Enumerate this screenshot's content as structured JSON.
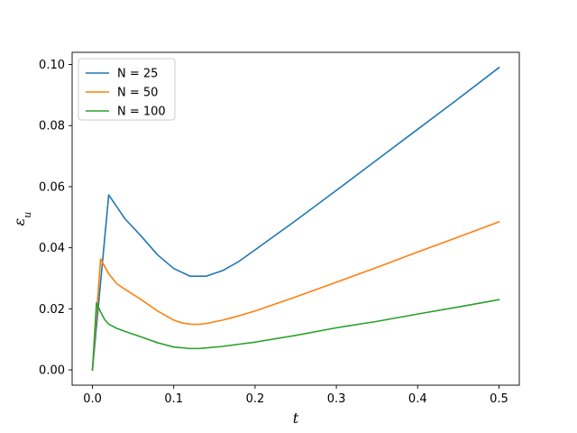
{
  "chart_data": {
    "type": "line",
    "title": "",
    "xlabel": "t",
    "ylabel": "ε_u",
    "xlim": [
      -0.025,
      0.525
    ],
    "ylim": [
      -0.005,
      0.104
    ],
    "xticks": [
      0.0,
      0.1,
      0.2,
      0.3,
      0.4,
      0.5
    ],
    "xtick_labels": [
      "0.0",
      "0.1",
      "0.2",
      "0.3",
      "0.4",
      "0.5"
    ],
    "yticks": [
      0.0,
      0.02,
      0.04,
      0.06,
      0.08,
      0.1
    ],
    "ytick_labels": [
      "0.00",
      "0.02",
      "0.04",
      "0.06",
      "0.08",
      "0.10"
    ],
    "grid": false,
    "legend": "top-left",
    "series": [
      {
        "name": "N = 25",
        "color": "#1f77b4",
        "x": [
          0,
          0.02,
          0.04,
          0.06,
          0.08,
          0.1,
          0.12,
          0.14,
          0.16,
          0.18,
          0.2,
          0.25,
          0.3,
          0.35,
          0.4,
          0.45,
          0.5
        ],
        "y": [
          0,
          0.0573,
          0.0495,
          0.0438,
          0.0377,
          0.0332,
          0.0307,
          0.0307,
          0.0325,
          0.0355,
          0.0393,
          0.0489,
          0.0588,
          0.0688,
          0.0788,
          0.0888,
          0.099
        ]
      },
      {
        "name": "N = 50",
        "color": "#ff7f0e",
        "x": [
          0,
          0.01,
          0.02,
          0.03,
          0.04,
          0.06,
          0.08,
          0.1,
          0.11,
          0.12,
          0.13,
          0.14,
          0.16,
          0.18,
          0.2,
          0.25,
          0.3,
          0.35,
          0.4,
          0.45,
          0.5
        ],
        "y": [
          0,
          0.0363,
          0.0315,
          0.0282,
          0.0264,
          0.023,
          0.0193,
          0.0163,
          0.0154,
          0.015,
          0.0149,
          0.0152,
          0.0163,
          0.0177,
          0.0193,
          0.0239,
          0.0287,
          0.0336,
          0.0386,
          0.0435,
          0.0485
        ]
      },
      {
        "name": "N = 100",
        "color": "#2ca02c",
        "x": [
          0,
          0.005,
          0.01,
          0.015,
          0.02,
          0.03,
          0.04,
          0.06,
          0.08,
          0.1,
          0.12,
          0.13,
          0.14,
          0.16,
          0.18,
          0.2,
          0.25,
          0.3,
          0.35,
          0.4,
          0.45,
          0.5
        ],
        "y": [
          0,
          0.022,
          0.019,
          0.0165,
          0.015,
          0.0136,
          0.0126,
          0.0108,
          0.0089,
          0.0075,
          0.007,
          0.007,
          0.0072,
          0.0077,
          0.0084,
          0.0091,
          0.0113,
          0.0138,
          0.0159,
          0.0183,
          0.0206,
          0.023
        ]
      }
    ]
  }
}
